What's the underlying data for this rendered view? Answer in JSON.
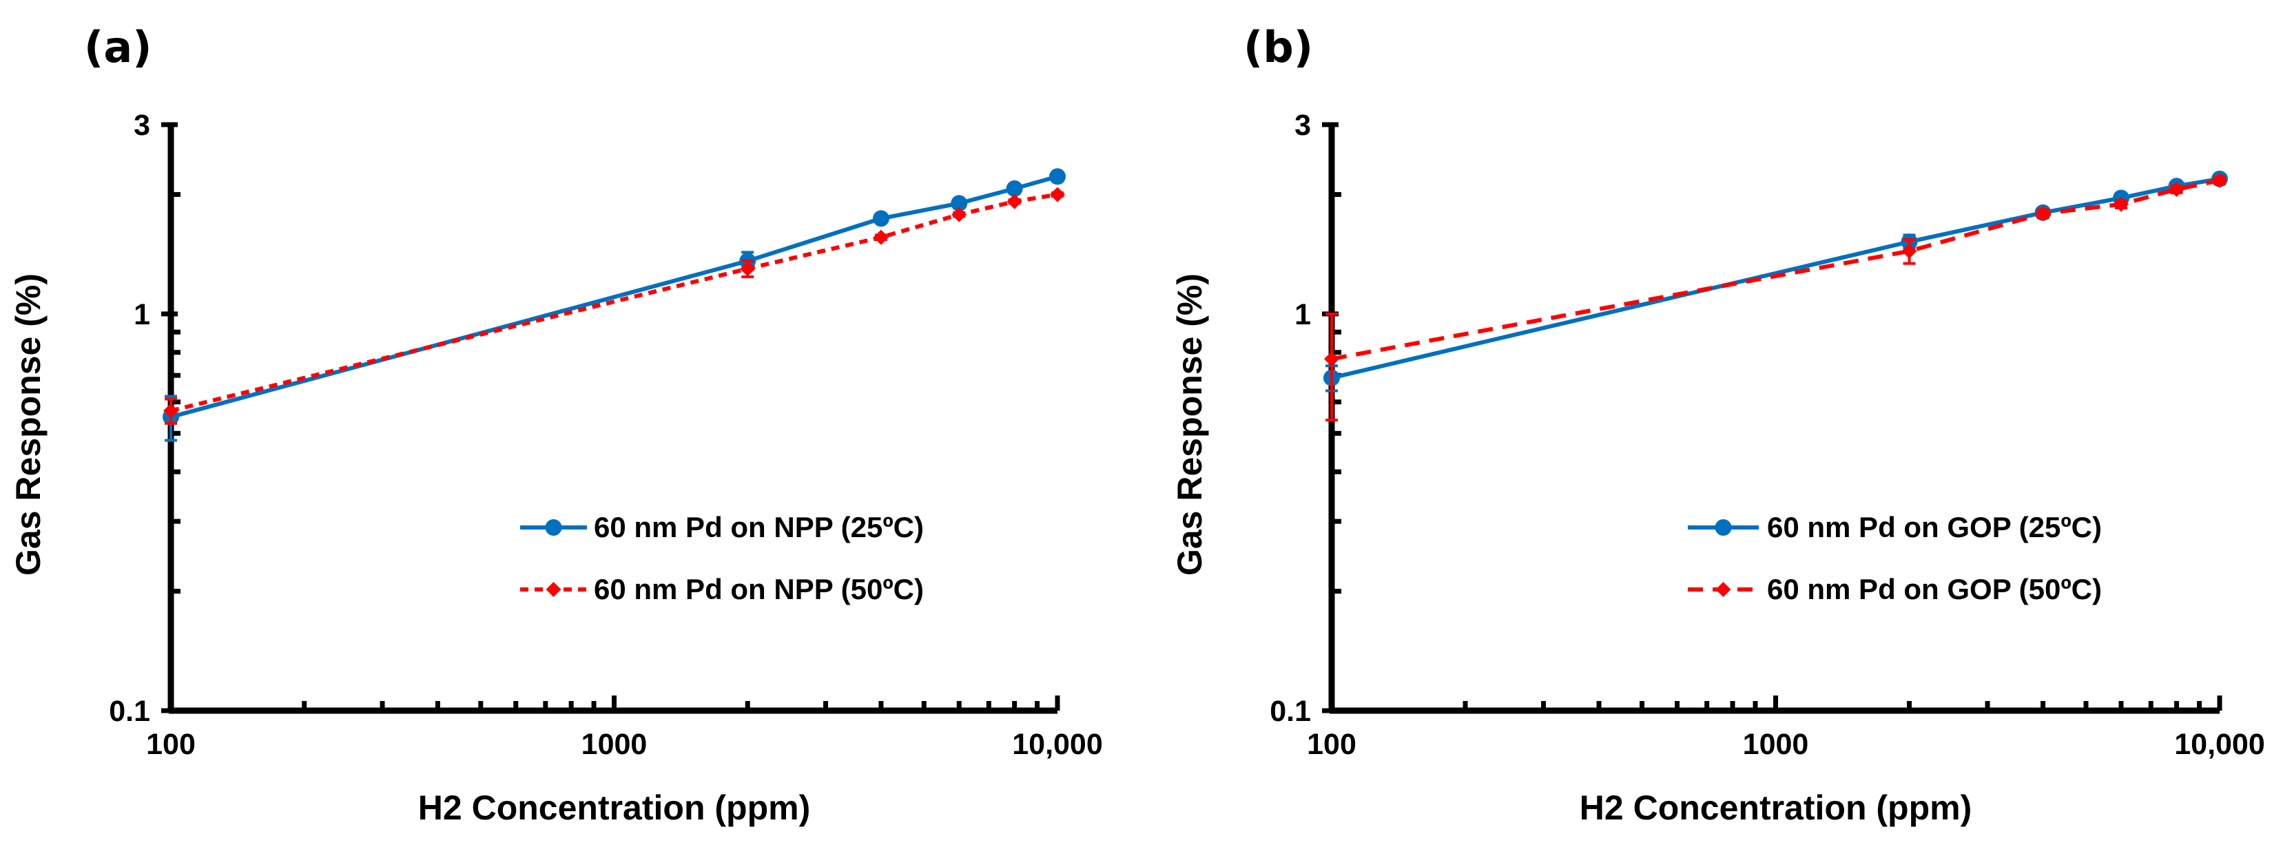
{
  "chart_data": [
    {
      "type": "line",
      "panel_label": "(a)",
      "xlabel": "H2 Concentration (ppm)",
      "ylabel": "Gas Response (%)",
      "x_scale": "log",
      "y_scale": "log",
      "xlim": [
        100,
        10000
      ],
      "ylim": [
        0.1,
        3
      ],
      "x_ticks": [
        {
          "value": 100,
          "label": "100"
        },
        {
          "value": 1000,
          "label": "1000"
        },
        {
          "value": 10000,
          "label": "10,000"
        }
      ],
      "y_ticks": [
        {
          "value": 0.1,
          "label": "0.1"
        },
        {
          "value": 1,
          "label": "1"
        },
        {
          "value": 3,
          "label": "3"
        }
      ],
      "grid": false,
      "legend_position": "center-right",
      "series": [
        {
          "name": "60 nm Pd on NPP (25ºC)",
          "color": "#0070C0",
          "line_style": "solid",
          "marker": "circle",
          "x": [
            100,
            2000,
            4000,
            6000,
            8000,
            10000
          ],
          "y": [
            0.55,
            1.36,
            1.74,
            1.9,
            2.07,
            2.22
          ],
          "error": [
            0.07,
            0.07,
            0.02,
            0.02,
            0.02,
            0.02
          ]
        },
        {
          "name": "60 nm Pd on NPP (50ºC)",
          "color": "#FF0000",
          "line_style": "dashed",
          "marker": "diamond",
          "x": [
            100,
            2000,
            4000,
            6000,
            8000,
            10000
          ],
          "y": [
            0.57,
            1.3,
            1.56,
            1.78,
            1.92,
            2.0
          ],
          "error": [
            0.04,
            0.06,
            0.02,
            0.02,
            0.02,
            0.02
          ]
        }
      ]
    },
    {
      "type": "line",
      "panel_label": "(b)",
      "xlabel": "H2 Concentration (ppm)",
      "ylabel": "Gas Response (%)",
      "x_scale": "log",
      "y_scale": "log",
      "xlim": [
        100,
        10000
      ],
      "ylim": [
        0.1,
        3
      ],
      "x_ticks": [
        {
          "value": 100,
          "label": "100"
        },
        {
          "value": 1000,
          "label": "1000"
        },
        {
          "value": 10000,
          "label": "10,000"
        }
      ],
      "y_ticks": [
        {
          "value": 0.1,
          "label": "0.1"
        },
        {
          "value": 1,
          "label": "1"
        },
        {
          "value": 3,
          "label": "3"
        }
      ],
      "grid": false,
      "legend_position": "center-right",
      "series": [
        {
          "name": "60 nm Pd on GOP (25ºC)",
          "color": "#0070C0",
          "line_style": "solid",
          "marker": "circle",
          "x": [
            100,
            2000,
            4000,
            6000,
            8000,
            10000
          ],
          "y": [
            0.69,
            1.52,
            1.8,
            1.96,
            2.1,
            2.19
          ],
          "error": [
            0.05,
            0.06,
            0.03,
            0.03,
            0.03,
            0.03
          ]
        },
        {
          "name": "60 nm Pd on GOP (50ºC)",
          "color": "#FF0000",
          "line_style": "dashed",
          "marker": "diamond",
          "x": [
            100,
            2000,
            4000,
            6000,
            8000,
            10000
          ],
          "y": [
            0.77,
            1.44,
            1.79,
            1.89,
            2.06,
            2.17
          ],
          "error": [
            0.23,
            0.1,
            0.04,
            0.04,
            0.04,
            0.04
          ]
        }
      ]
    }
  ]
}
